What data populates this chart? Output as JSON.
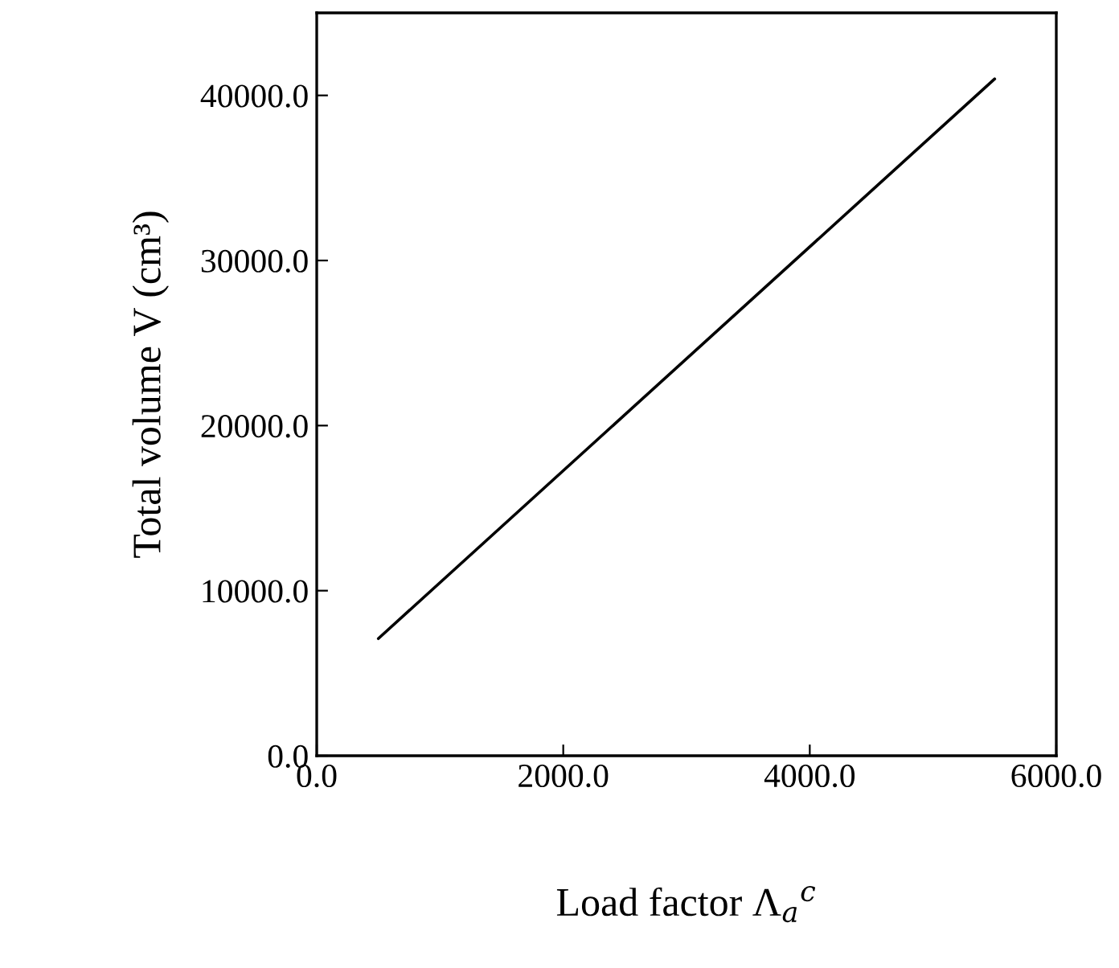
{
  "chart_data": {
    "type": "line",
    "xlabel": "Load factor Λ$_{a}$$^{c}$",
    "ylabel": "Total volume V (cm³)",
    "x": [
      500,
      5500
    ],
    "series": [
      {
        "color": "#000000",
        "values": [
          7100,
          41000
        ]
      }
    ],
    "xlim": [
      0,
      6000
    ],
    "xticks": [
      {
        "value": 0,
        "label": "0.0"
      },
      {
        "value": 2000,
        "label": "2000.0"
      },
      {
        "value": 4000,
        "label": "4000.0"
      },
      {
        "value": 6000,
        "label": "6000.0"
      }
    ],
    "ylim": [
      0,
      45000
    ],
    "yticks": [
      {
        "value": 0,
        "label": "0.0"
      },
      {
        "value": 10000,
        "label": "10000.0"
      },
      {
        "value": 20000,
        "label": "20000.0"
      },
      {
        "value": 30000,
        "label": "30000.0"
      },
      {
        "value": 40000,
        "label": "40000.0"
      }
    ],
    "grid": false,
    "marker": "none",
    "line_style": "solid"
  }
}
